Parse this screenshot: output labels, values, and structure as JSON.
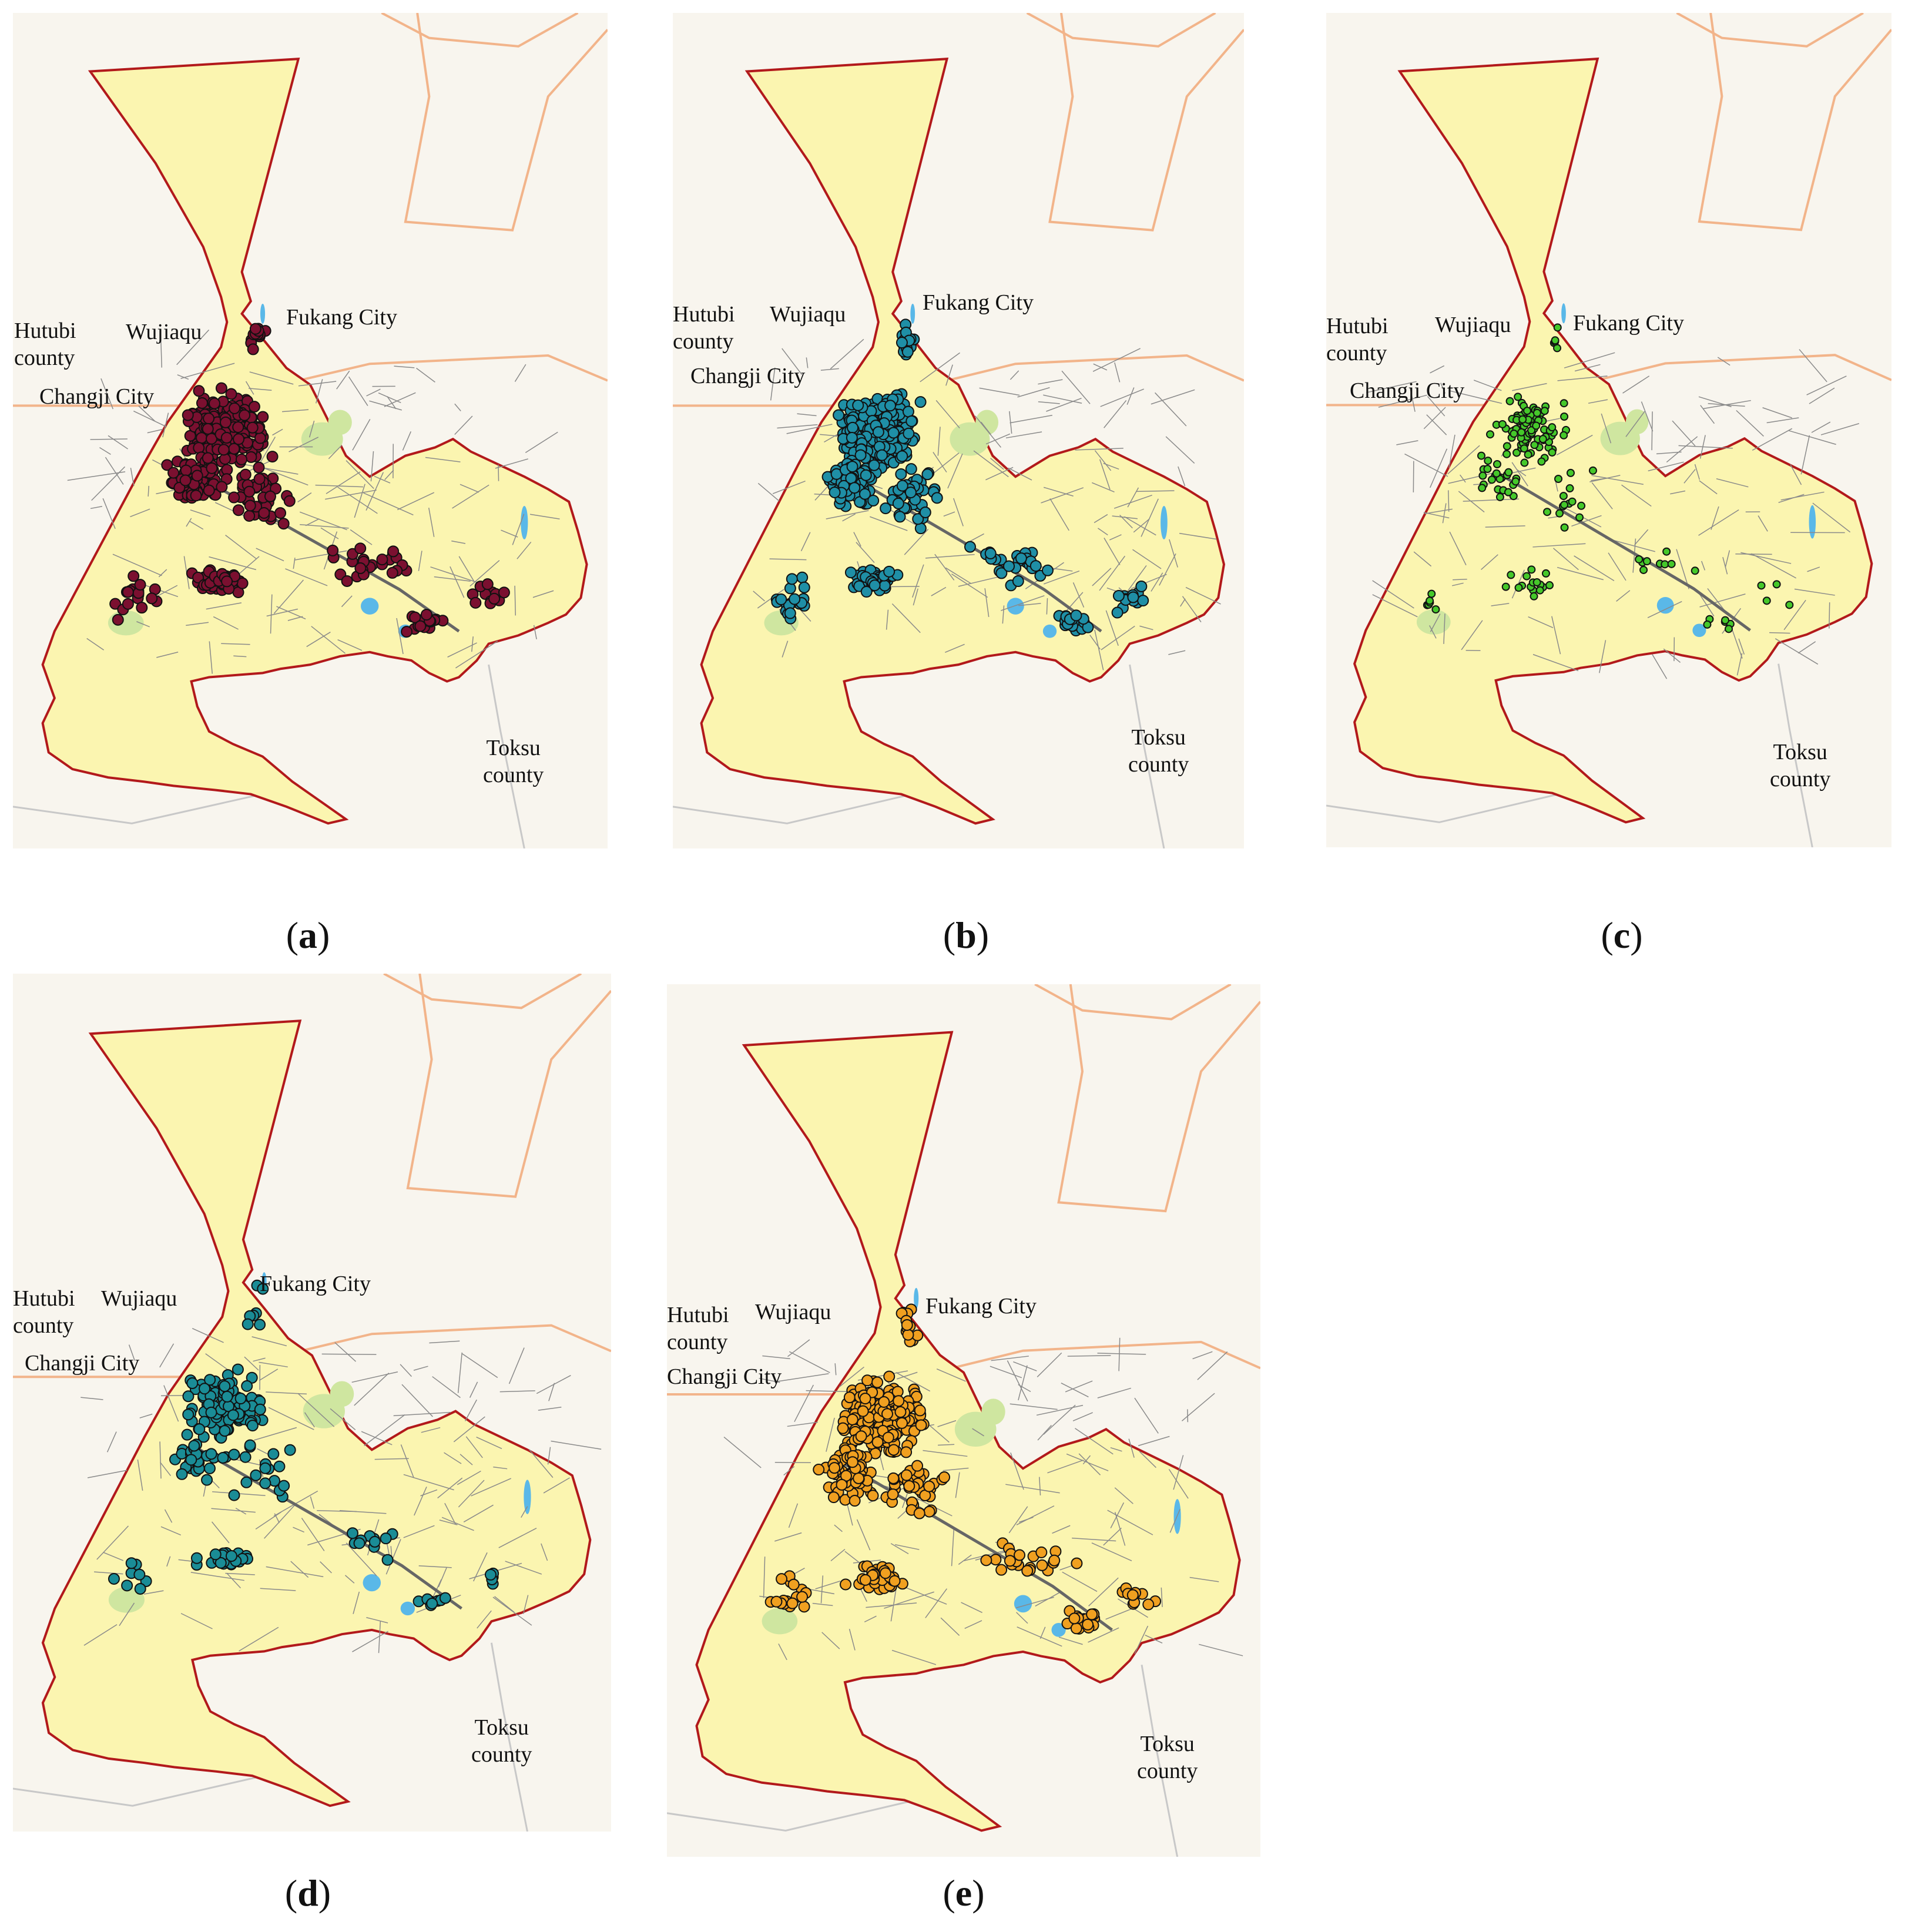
{
  "place_labels": {
    "hutubi": "Hutubi\ncounty",
    "wujiaqu": "Wujiaqu",
    "fukang": "Fukang City",
    "changji": "Changji City",
    "toksu": "Toksu\ncounty"
  },
  "panels": [
    {
      "id": "a",
      "caption": "a",
      "marker_color": "#7b1030"
    },
    {
      "id": "b",
      "caption": "b",
      "marker_color": "#1f8fa6"
    },
    {
      "id": "c",
      "caption": "c",
      "marker_color": "#45c82a"
    },
    {
      "id": "d",
      "caption": "d",
      "marker_color": "#1a8c96"
    },
    {
      "id": "e",
      "caption": "e",
      "marker_color": "#f0a020"
    }
  ],
  "colors": {
    "region_fill": "#fbf5b0",
    "region_border": "#b2191b",
    "roads": "#8a8a8a",
    "water": "#5ab8e8",
    "green": "#cfe6a0",
    "background": "#f8f5ee",
    "highway": "#f2b48a"
  }
}
